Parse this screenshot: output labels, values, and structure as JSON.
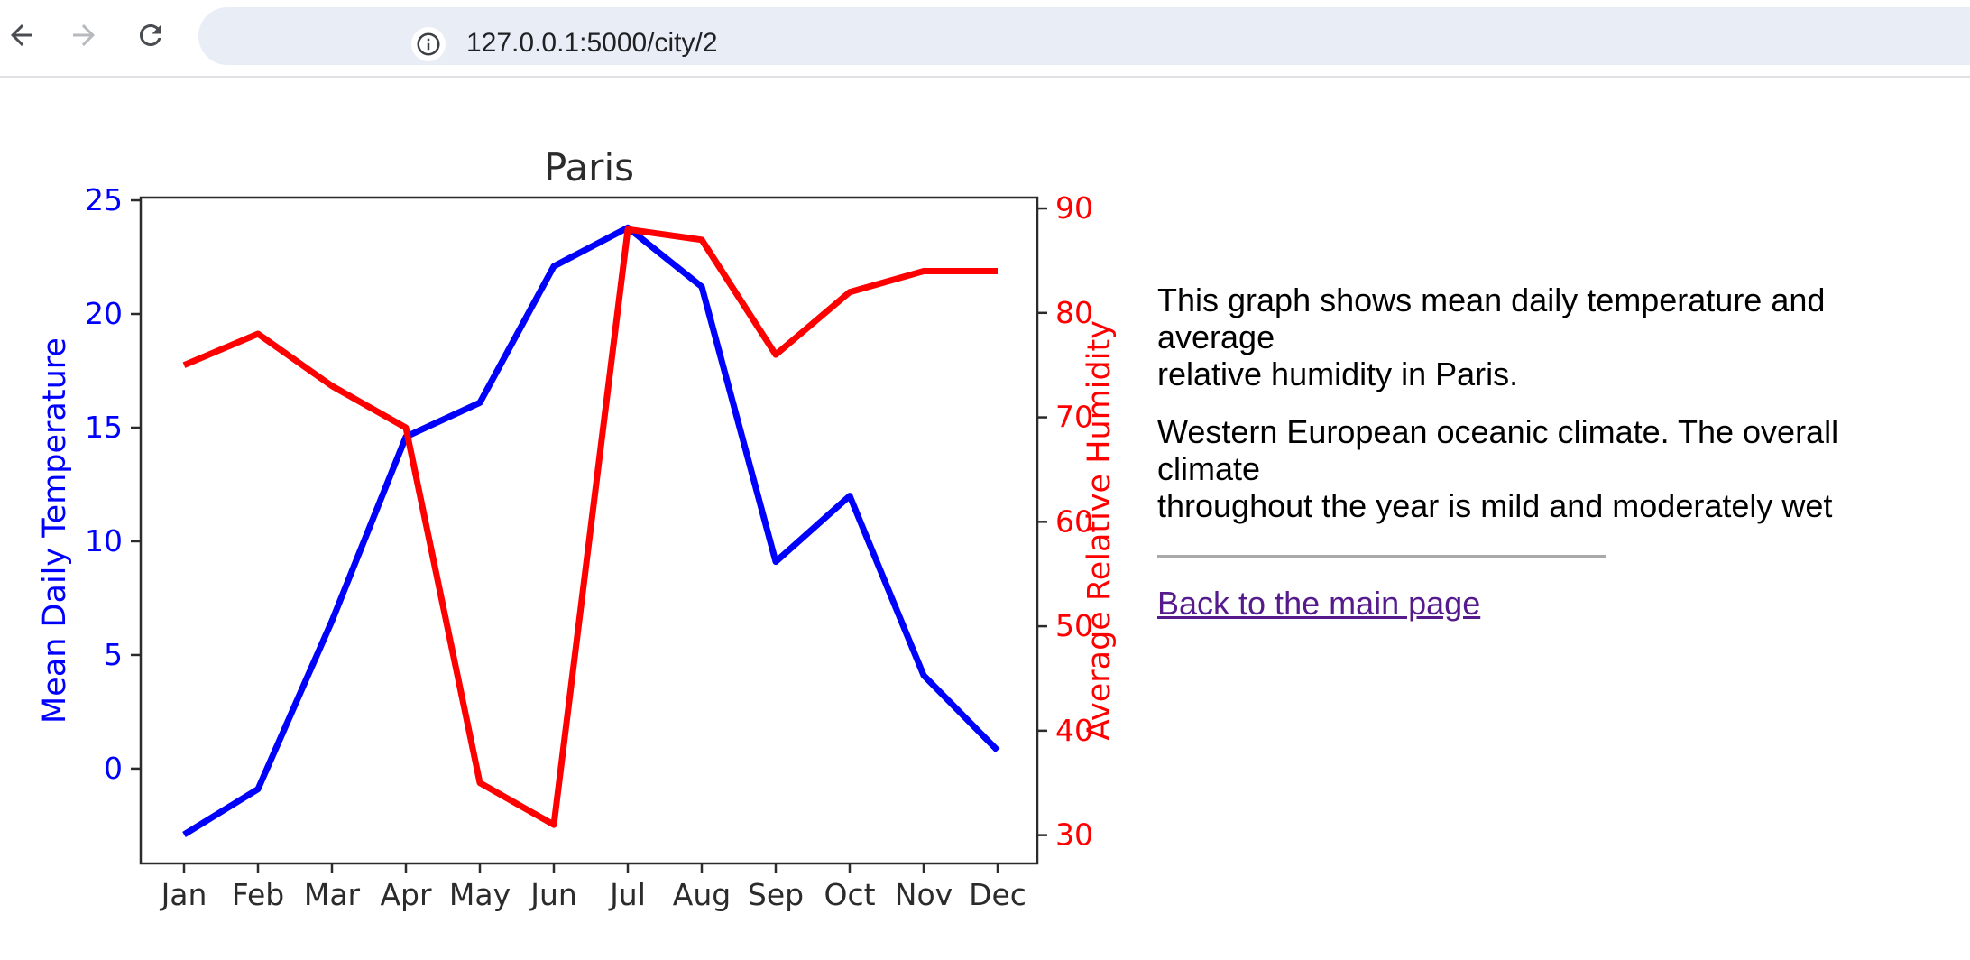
{
  "browser": {
    "url": "127.0.0.1:5000/city/2"
  },
  "page": {
    "description_para_1": "This graph shows mean daily temperature and average\nrelative humidity in Paris.",
    "description_para_2": "Western European oceanic climate. The overall climate\nthroughout the year is mild and moderately wet",
    "back_link_label": "Back to the main page"
  },
  "chart_data": {
    "type": "line",
    "title": "Paris",
    "categories": [
      "Jan",
      "Feb",
      "Mar",
      "Apr",
      "May",
      "Jun",
      "Jul",
      "Aug",
      "Sep",
      "Oct",
      "Nov",
      "Dec"
    ],
    "series": [
      {
        "name": "Mean Daily Temperature",
        "axis": "left",
        "color": "#0000ff",
        "values": [
          -2.9,
          -0.9,
          6.5,
          14.6,
          16.1,
          22.1,
          23.8,
          21.2,
          9.1,
          12.0,
          4.1,
          0.8
        ]
      },
      {
        "name": "Average Relative Humidity",
        "axis": "right",
        "color": "#ff0000",
        "values": [
          75,
          78,
          73,
          69,
          35,
          31,
          88,
          87,
          76,
          82,
          84,
          84
        ]
      }
    ],
    "left_axis": {
      "label": "Mean Daily Temperature",
      "color": "#0000ff",
      "ticks": [
        0,
        5,
        10,
        15,
        20,
        25
      ],
      "range": [
        -4.17,
        25.12
      ]
    },
    "right_axis": {
      "label": "Average Relative Humidity",
      "color": "#ff0000",
      "ticks": [
        30,
        40,
        50,
        60,
        70,
        80,
        90
      ],
      "range": [
        27.29,
        91.04
      ]
    },
    "x_axis": {
      "labels": [
        "Jan",
        "Feb",
        "Mar",
        "Apr",
        "May",
        "Jun",
        "Jul",
        "Aug",
        "Sep",
        "Oct",
        "Nov",
        "Dec"
      ],
      "text_color": "#2b2b2b"
    },
    "grid": false,
    "legend": "none",
    "frame_color": "#2b2b2b"
  }
}
